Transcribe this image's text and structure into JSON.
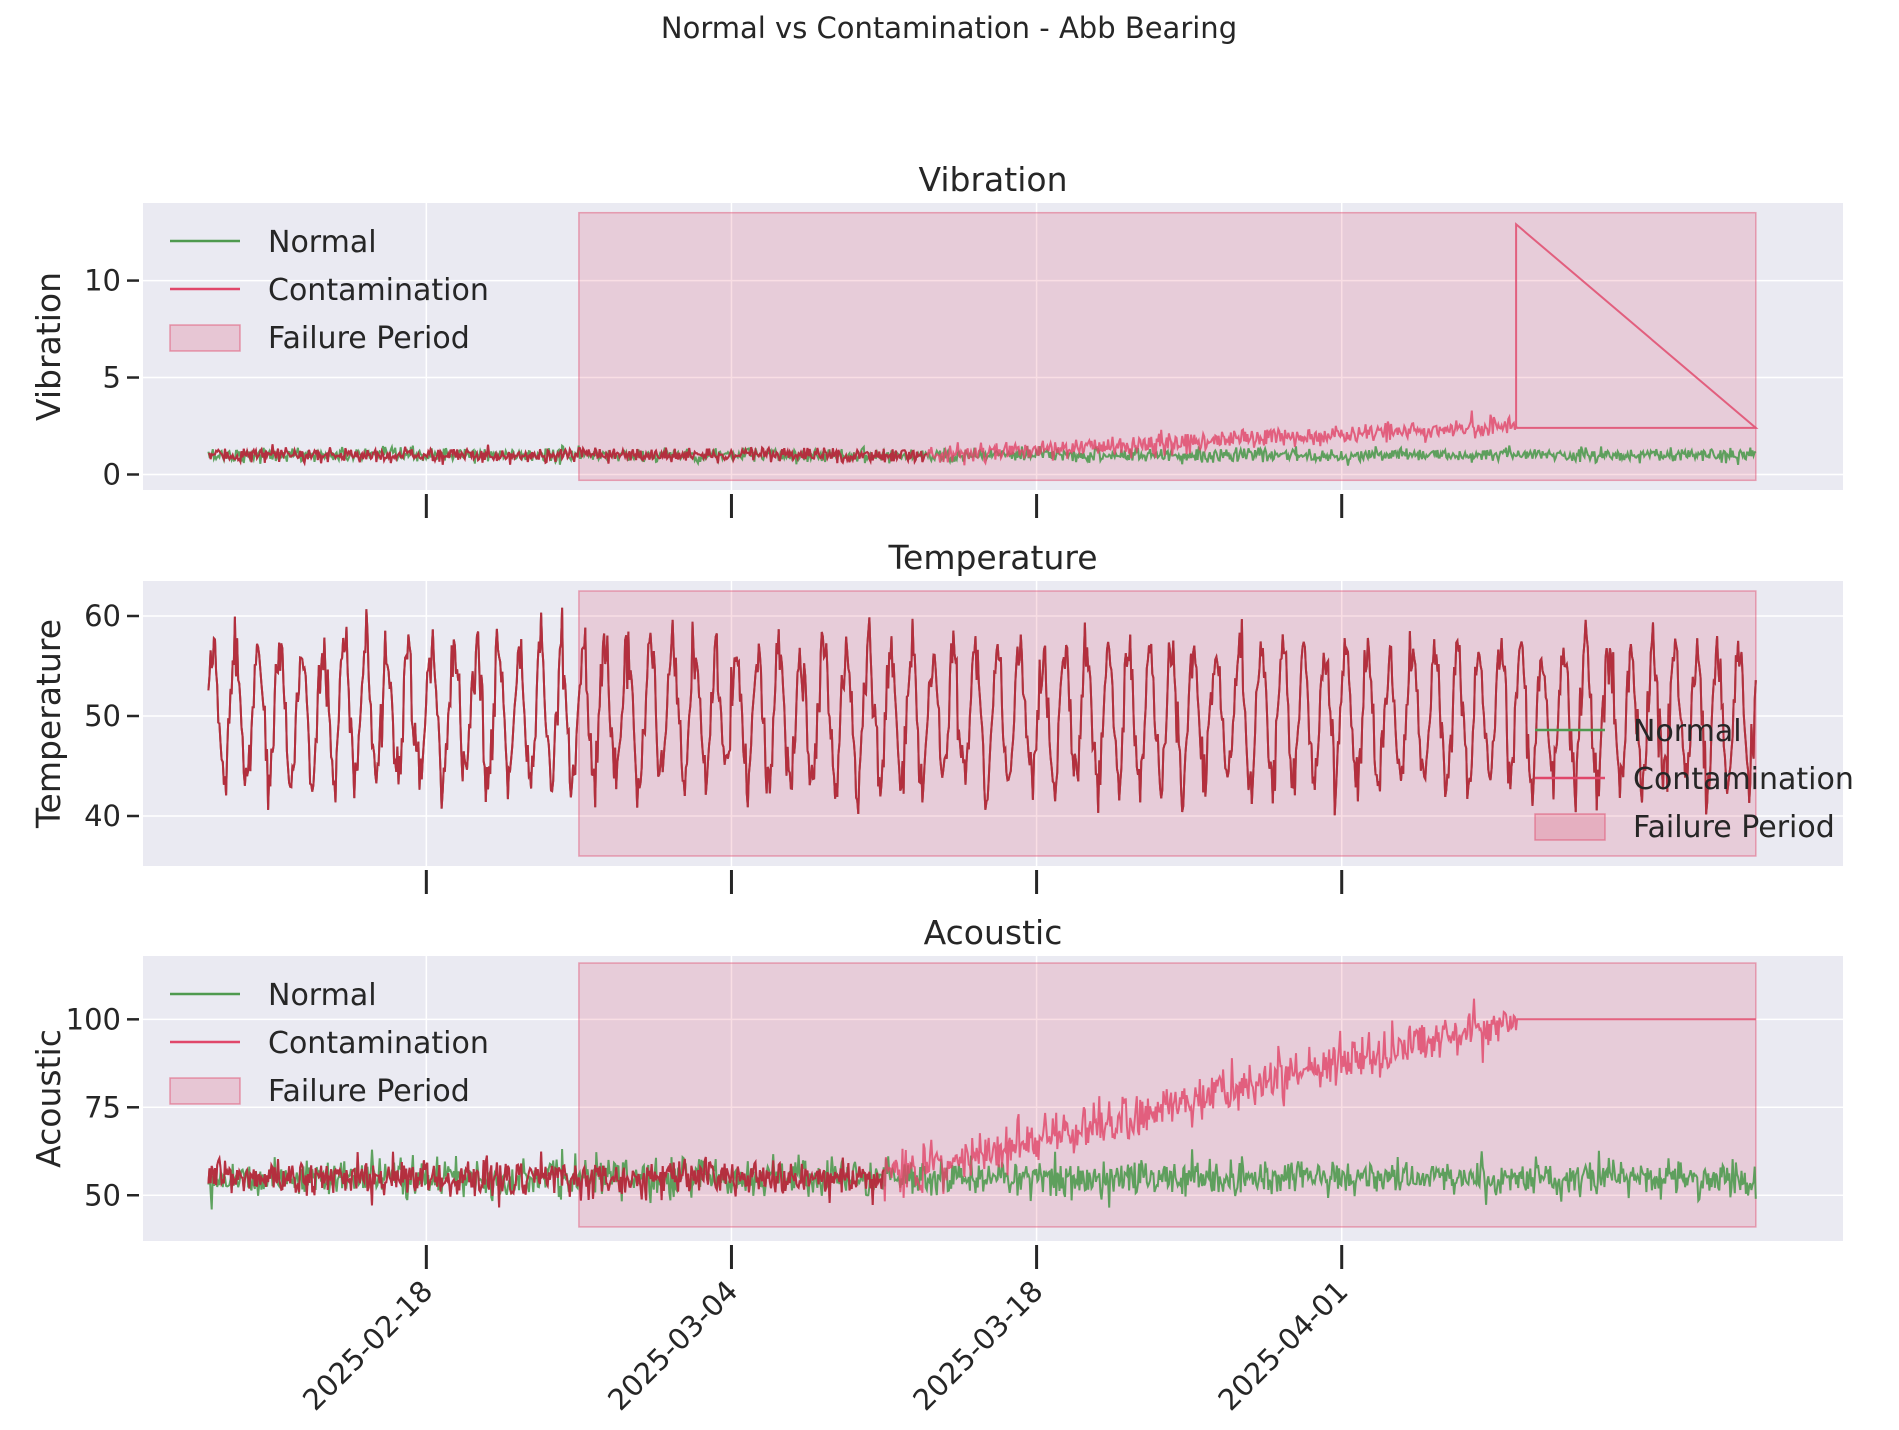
{
  "figure": {
    "suptitle": "Normal vs Contamination - Abb Bearing"
  },
  "chart_data": [
    {
      "type": "line",
      "title": "Vibration",
      "ylabel": "Vibration",
      "xlabel": "",
      "x_range": [
        "2025-02-05",
        "2025-04-24"
      ],
      "ylim": [
        -0.8,
        14.0
      ],
      "yticks": [
        0,
        5,
        10
      ],
      "xticks": [
        "2025-02-18",
        "2025-03-04",
        "2025-03-18",
        "2025-04-01"
      ],
      "grid": true,
      "legend": "upper-left",
      "failure_period": {
        "label": "Failure Period",
        "start": "2025-02-25",
        "end": "2025-04-20",
        "y": [
          -0.3,
          13.5
        ]
      },
      "series": [
        {
          "name": "Normal",
          "color": "#4f9a4f",
          "start": "2025-02-08",
          "end": "2025-04-20",
          "baseline": 1.0,
          "noise": 0.18,
          "stops_at": null
        },
        {
          "name": "Contamination",
          "color": "#e0476a",
          "start": "2025-02-08",
          "end": "2025-04-20",
          "onset": "2025-03-13",
          "level_at_end": 2.5,
          "noise": 0.25,
          "spike": {
            "date": "2025-04-09",
            "value": 12.9
          },
          "flat_after": "2025-04-09",
          "flat_value": 2.4
        }
      ]
    },
    {
      "type": "line",
      "title": "Temperature",
      "ylabel": "Temperature",
      "xlabel": "",
      "x_range": [
        "2025-02-05",
        "2025-04-24"
      ],
      "ylim": [
        35.0,
        63.5
      ],
      "yticks": [
        40,
        50,
        60
      ],
      "xticks": [
        "2025-02-18",
        "2025-03-04",
        "2025-03-18",
        "2025-04-01"
      ],
      "grid": true,
      "legend": "lower-right",
      "failure_period": {
        "label": "Failure Period",
        "start": "2025-02-25",
        "end": "2025-04-20",
        "y": [
          36.0,
          62.5
        ]
      },
      "series": [
        {
          "name": "Normal",
          "color": "#4f9a4f",
          "start": "2025-02-08",
          "end": "2025-04-20",
          "mean": 50.0,
          "amplitude": 6.5,
          "period_days": 1.0,
          "noise": 1.5
        },
        {
          "name": "Contamination",
          "color": "#e0476a",
          "start": "2025-02-08",
          "end": "2025-04-20",
          "mean": 50.0,
          "amplitude": 6.5,
          "period_days": 1.0,
          "noise": 1.5
        }
      ]
    },
    {
      "type": "line",
      "title": "Acoustic",
      "ylabel": "Acoustic",
      "xlabel": "",
      "x_range": [
        "2025-02-05",
        "2025-04-24"
      ],
      "ylim": [
        37.0,
        118.0
      ],
      "yticks": [
        50,
        75,
        100
      ],
      "xticks": [
        "2025-02-18",
        "2025-03-04",
        "2025-03-18",
        "2025-04-01"
      ],
      "grid": true,
      "legend": "upper-left",
      "failure_period": {
        "label": "Failure Period",
        "start": "2025-02-25",
        "end": "2025-04-20",
        "y": [
          41.0,
          116.0
        ]
      },
      "series": [
        {
          "name": "Normal",
          "color": "#4f9a4f",
          "start": "2025-02-08",
          "end": "2025-04-20",
          "baseline": 55.0,
          "noise": 2.6
        },
        {
          "name": "Contamination",
          "color": "#e0476a",
          "start": "2025-02-08",
          "end": "2025-04-20",
          "onset": "2025-03-11",
          "level_at_end": 100.0,
          "noise": 3.2,
          "flat_after": "2025-04-09",
          "flat_value": 100.0
        }
      ]
    }
  ]
}
